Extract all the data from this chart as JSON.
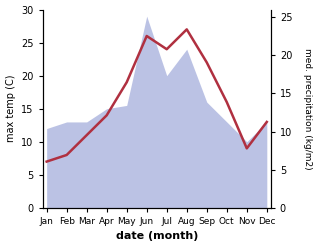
{
  "months": [
    "Jan",
    "Feb",
    "Mar",
    "Apr",
    "May",
    "Jun",
    "Jul",
    "Aug",
    "Sep",
    "Oct",
    "Nov",
    "Dec"
  ],
  "month_positions": [
    0,
    1,
    2,
    3,
    4,
    5,
    6,
    7,
    8,
    9,
    10,
    11
  ],
  "temp_max": [
    7.0,
    8.0,
    11.0,
    14.0,
    19.0,
    26.0,
    24.0,
    27.0,
    22.0,
    16.0,
    9.0,
    13.0
  ],
  "precip": [
    12.0,
    13.0,
    13.0,
    15.0,
    15.5,
    29.0,
    20.0,
    24.0,
    16.0,
    13.0,
    10.0,
    13.0
  ],
  "temp_color": "#b03040",
  "precip_color": "#b0b8e0",
  "bg_color": "#ffffff",
  "left_ylim": [
    0,
    30
  ],
  "left_yticks": [
    0,
    5,
    10,
    15,
    20,
    25,
    30
  ],
  "right_ylim": [
    0,
    26
  ],
  "right_yticks": [
    0,
    5,
    10,
    15,
    20,
    25
  ],
  "xlabel": "date (month)",
  "ylabel_left": "max temp (C)",
  "ylabel_right": "med. precipitation (kg/m2)"
}
